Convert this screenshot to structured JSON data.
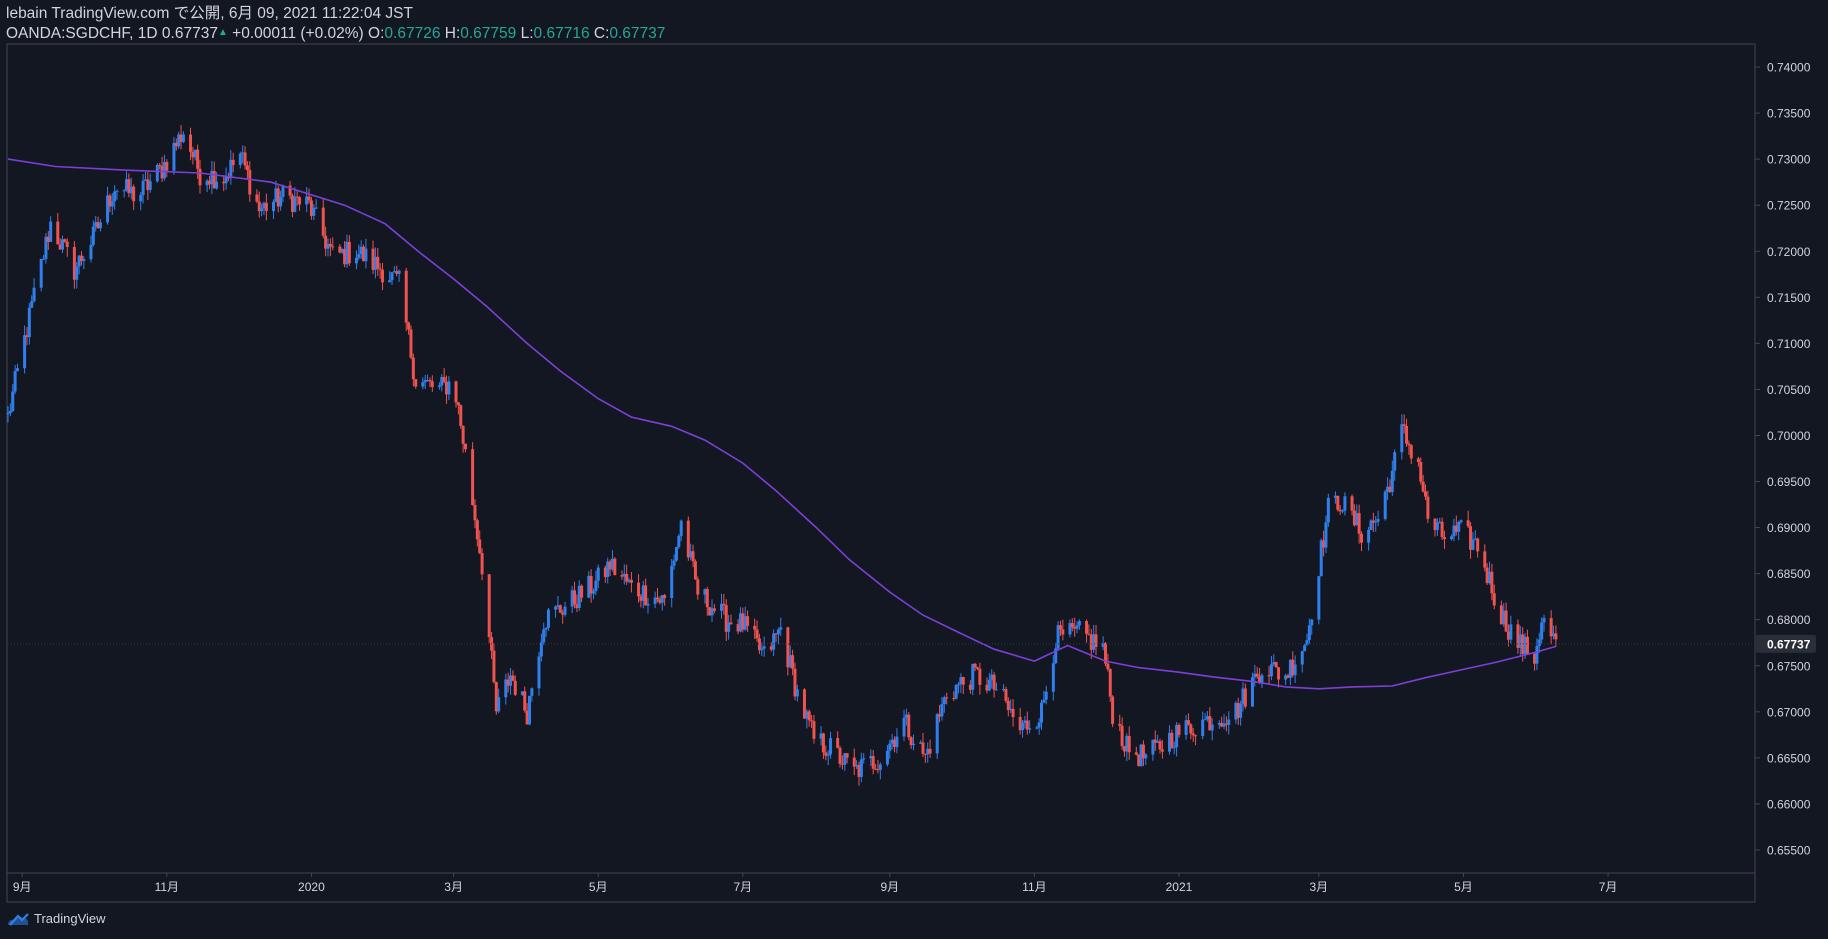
{
  "header": {
    "line1": "lebain TradingView.com で公開, 6月 09, 2021 11:22:04 JST",
    "symbol": "OANDA:SGDCHF, 1D",
    "last": "0.67737",
    "change": "+0.00011 (+0.02%)",
    "o_label": "O:",
    "o": "0.67726",
    "h_label": "H:",
    "h": "0.67759",
    "l_label": "L:",
    "l": "0.67716",
    "c_label": "C:",
    "c": "0.67737"
  },
  "logo": {
    "icon": "tradingview-cloud-icon",
    "label": "TradingView"
  },
  "colors": {
    "background": "#131722",
    "up": "#2f80ed",
    "down": "#ef5350",
    "ma": "#7e3fd8",
    "price_tag": "#2a2e39",
    "value_green": "#26a69a"
  },
  "chart_data": {
    "type": "candlestick",
    "symbol": "OANDA:SGDCHF",
    "interval": "1D",
    "ylim": [
      0.6525,
      0.7425
    ],
    "y_ticks": [
      "0.74000",
      "0.73500",
      "0.73000",
      "0.72500",
      "0.72000",
      "0.71500",
      "0.71000",
      "0.70500",
      "0.70000",
      "0.69500",
      "0.69000",
      "0.68500",
      "0.68000",
      "0.67500",
      "0.67000",
      "0.66500",
      "0.66000",
      "0.65500"
    ],
    "x_ticks": [
      {
        "label": "9月",
        "date": "2019-09-01"
      },
      {
        "label": "11月",
        "date": "2019-11-01"
      },
      {
        "label": "2020",
        "date": "2020-01-01"
      },
      {
        "label": "3月",
        "date": "2020-03-01"
      },
      {
        "label": "5月",
        "date": "2020-05-01"
      },
      {
        "label": "7月",
        "date": "2020-07-01"
      },
      {
        "label": "9月",
        "date": "2020-09-01"
      },
      {
        "label": "11月",
        "date": "2020-11-01"
      },
      {
        "label": "2021",
        "date": "2021-01-01"
      },
      {
        "label": "3月",
        "date": "2021-03-01"
      },
      {
        "label": "5月",
        "date": "2021-05-01"
      },
      {
        "label": "7月",
        "date": "2021-07-01"
      }
    ],
    "x_range": [
      "2019-08-26",
      "2021-09-01"
    ],
    "price_path": [
      [
        "2019-08-26",
        0.702
      ],
      [
        "2019-09-05",
        0.714
      ],
      [
        "2019-09-13",
        0.723
      ],
      [
        "2019-09-23",
        0.718
      ],
      [
        "2019-10-01",
        0.7215
      ],
      [
        "2019-10-10",
        0.727
      ],
      [
        "2019-10-20",
        0.726
      ],
      [
        "2019-10-30",
        0.729
      ],
      [
        "2019-11-08",
        0.733
      ],
      [
        "2019-11-15",
        0.7285
      ],
      [
        "2019-11-25",
        0.728
      ],
      [
        "2019-12-02",
        0.7305
      ],
      [
        "2019-12-10",
        0.7245
      ],
      [
        "2019-12-20",
        0.726
      ],
      [
        "2019-12-31",
        0.725
      ],
      [
        "2020-01-10",
        0.7195
      ],
      [
        "2020-01-20",
        0.72
      ],
      [
        "2020-01-31",
        0.718
      ],
      [
        "2020-02-07",
        0.7165
      ],
      [
        "2020-02-14",
        0.706
      ],
      [
        "2020-02-24",
        0.705
      ],
      [
        "2020-03-01",
        0.706
      ],
      [
        "2020-03-06",
        0.698
      ],
      [
        "2020-03-13",
        0.686
      ],
      [
        "2020-03-19",
        0.67
      ],
      [
        "2020-03-25",
        0.674
      ],
      [
        "2020-04-01",
        0.67
      ],
      [
        "2020-04-08",
        0.68
      ],
      [
        "2020-04-20",
        0.682
      ],
      [
        "2020-04-30",
        0.684
      ],
      [
        "2020-05-06",
        0.686
      ],
      [
        "2020-05-15",
        0.6835
      ],
      [
        "2020-05-29",
        0.682
      ],
      [
        "2020-06-05",
        0.6905
      ],
      [
        "2020-06-12",
        0.683
      ],
      [
        "2020-06-24",
        0.68
      ],
      [
        "2020-07-01",
        0.6795
      ],
      [
        "2020-07-10",
        0.676
      ],
      [
        "2020-07-17",
        0.679
      ],
      [
        "2020-07-24",
        0.672
      ],
      [
        "2020-07-31",
        0.667
      ],
      [
        "2020-08-07",
        0.666
      ],
      [
        "2020-08-17",
        0.6635
      ],
      [
        "2020-08-28",
        0.665
      ],
      [
        "2020-09-07",
        0.669
      ],
      [
        "2020-09-16",
        0.665
      ],
      [
        "2020-09-25",
        0.672
      ],
      [
        "2020-10-07",
        0.674
      ],
      [
        "2020-10-16",
        0.6725
      ],
      [
        "2020-10-26",
        0.668
      ],
      [
        "2020-11-04",
        0.67
      ],
      [
        "2020-11-10",
        0.678
      ],
      [
        "2020-11-20",
        0.6785
      ],
      [
        "2020-11-30",
        0.677
      ],
      [
        "2020-12-04",
        0.67
      ],
      [
        "2020-12-10",
        0.666
      ],
      [
        "2020-12-18",
        0.665
      ],
      [
        "2020-12-30",
        0.6675
      ],
      [
        "2021-01-12",
        0.669
      ],
      [
        "2021-01-25",
        0.67
      ],
      [
        "2021-02-05",
        0.675
      ],
      [
        "2021-02-15",
        0.674
      ],
      [
        "2021-02-24",
        0.678
      ],
      [
        "2021-03-01",
        0.686
      ],
      [
        "2021-03-05",
        0.692
      ],
      [
        "2021-03-10",
        0.693
      ],
      [
        "2021-03-19",
        0.6895
      ],
      [
        "2021-03-26",
        0.691
      ],
      [
        "2021-04-01",
        0.696
      ],
      [
        "2021-04-05",
        0.7005
      ],
      [
        "2021-04-12",
        0.697
      ],
      [
        "2021-04-16",
        0.691
      ],
      [
        "2021-04-22",
        0.689
      ],
      [
        "2021-04-30",
        0.6895
      ],
      [
        "2021-05-07",
        0.688
      ],
      [
        "2021-05-17",
        0.6805
      ],
      [
        "2021-05-24",
        0.6775
      ],
      [
        "2021-05-31",
        0.676
      ],
      [
        "2021-06-03",
        0.68
      ],
      [
        "2021-06-09",
        0.6774
      ]
    ],
    "ma_line": [
      [
        "2019-08-26",
        0.73
      ],
      [
        "2019-09-15",
        0.7292
      ],
      [
        "2019-10-15",
        0.7288
      ],
      [
        "2019-11-15",
        0.7285
      ],
      [
        "2019-12-15",
        0.7275
      ],
      [
        "2020-01-15",
        0.725
      ],
      [
        "2020-02-01",
        0.723
      ],
      [
        "2020-02-15",
        0.72
      ],
      [
        "2020-03-01",
        0.717
      ],
      [
        "2020-03-15",
        0.714
      ],
      [
        "2020-04-01",
        0.71
      ],
      [
        "2020-04-15",
        0.707
      ],
      [
        "2020-05-01",
        0.704
      ],
      [
        "2020-05-15",
        0.702
      ],
      [
        "2020-06-01",
        0.701
      ],
      [
        "2020-06-15",
        0.6995
      ],
      [
        "2020-07-01",
        0.697
      ],
      [
        "2020-07-15",
        0.694
      ],
      [
        "2020-08-01",
        0.69
      ],
      [
        "2020-08-15",
        0.6865
      ],
      [
        "2020-09-01",
        0.683
      ],
      [
        "2020-09-15",
        0.6805
      ],
      [
        "2020-10-01",
        0.6785
      ],
      [
        "2020-10-15",
        0.6768
      ],
      [
        "2020-11-01",
        0.6755
      ],
      [
        "2020-11-15",
        0.6772
      ],
      [
        "2020-12-01",
        0.6755
      ],
      [
        "2020-12-15",
        0.6748
      ],
      [
        "2021-01-01",
        0.6743
      ],
      [
        "2021-01-15",
        0.6738
      ],
      [
        "2021-02-01",
        0.6733
      ],
      [
        "2021-02-15",
        0.6727
      ],
      [
        "2021-03-01",
        0.6725
      ],
      [
        "2021-03-15",
        0.6727
      ],
      [
        "2021-04-01",
        0.6728
      ],
      [
        "2021-04-15",
        0.6737
      ],
      [
        "2021-05-01",
        0.6746
      ],
      [
        "2021-05-15",
        0.6754
      ],
      [
        "2021-06-01",
        0.6765
      ],
      [
        "2021-06-09",
        0.6771
      ]
    ],
    "last_price": 0.67737,
    "grid": false
  }
}
